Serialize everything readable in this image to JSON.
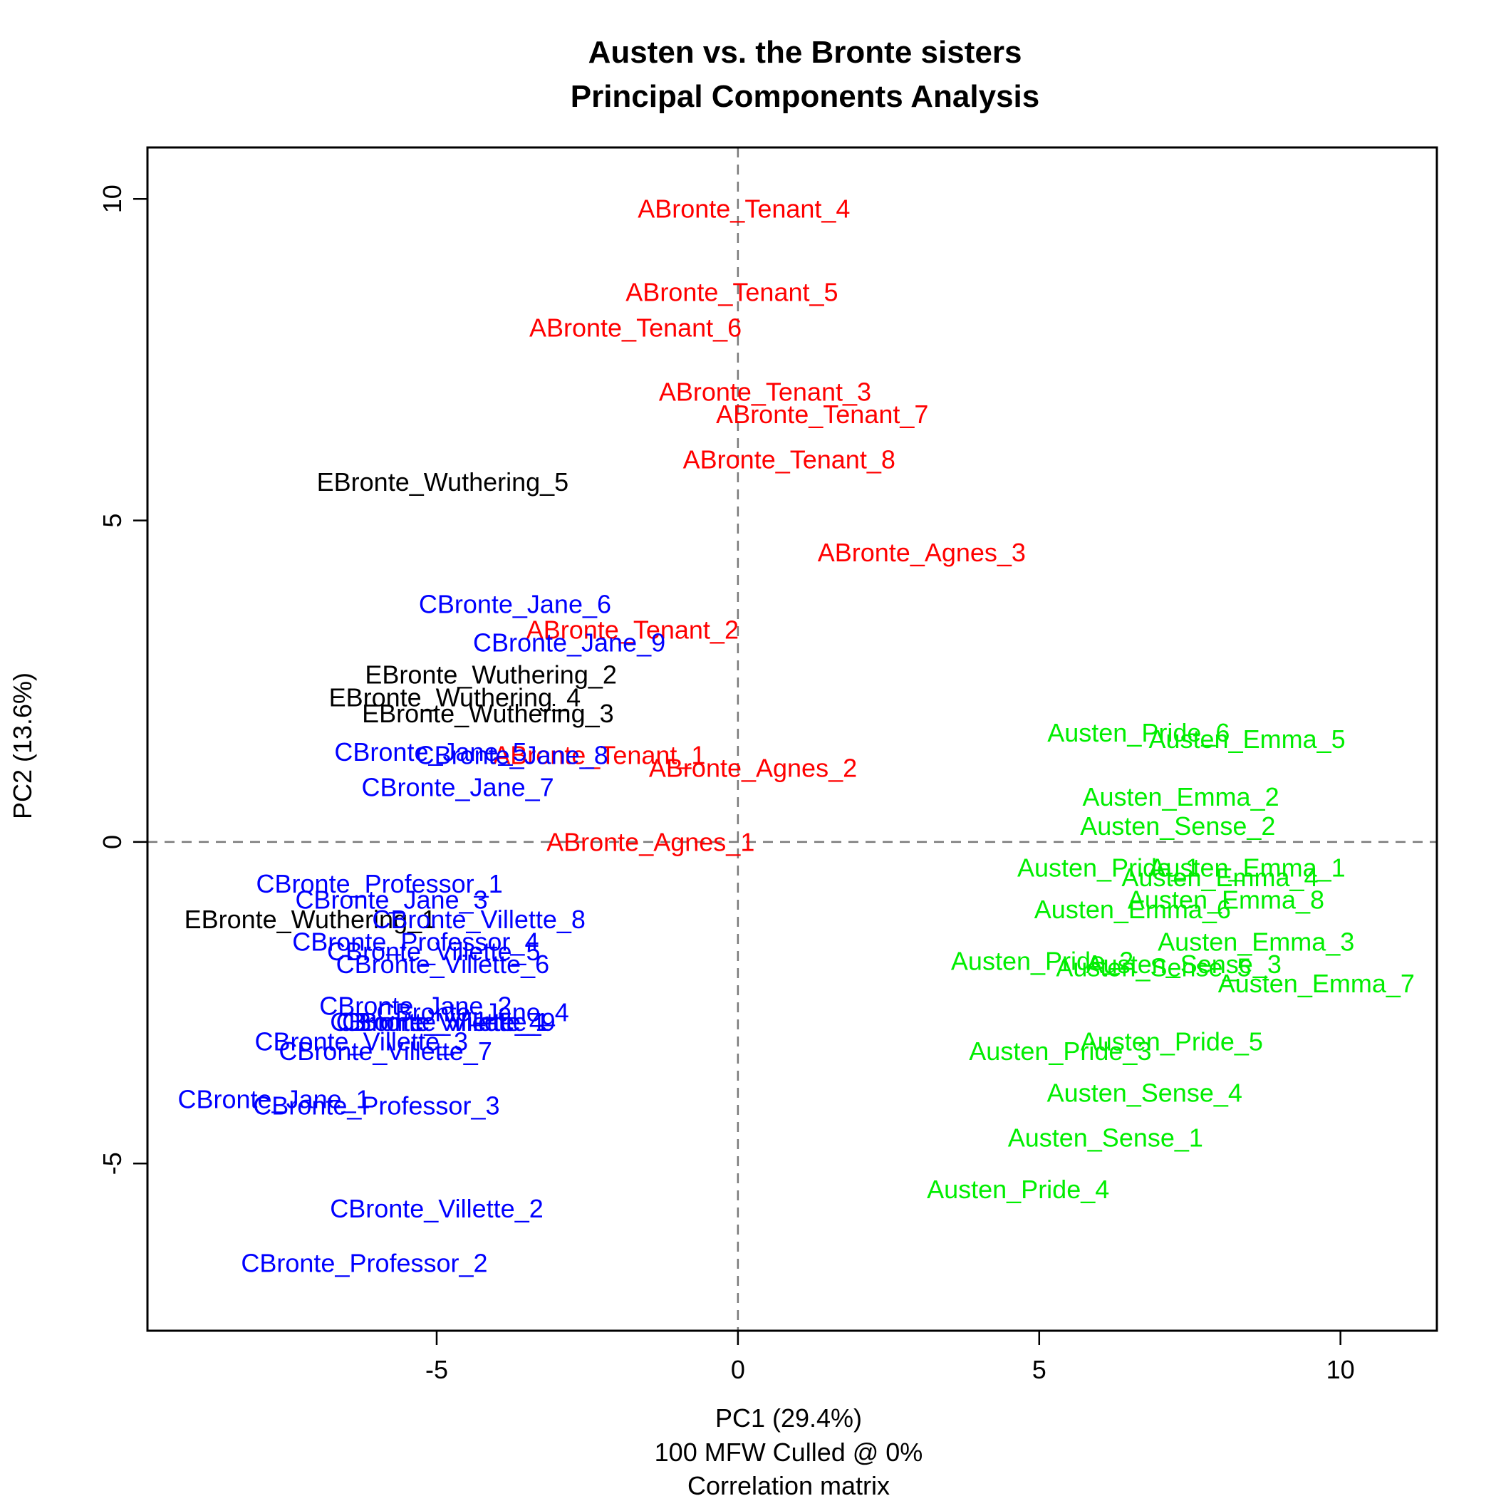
{
  "chart_data": {
    "type": "scatter",
    "title": [
      "Austen vs. the Bronte sisters",
      "Principal Components Analysis"
    ],
    "xlabel": [
      "PC1 (29.4%)",
      "100 MFW  Culled @ 0%",
      "Correlation matrix"
    ],
    "ylabel": "PC2 (13.6%)",
    "xlim": [
      -9.8,
      11.6
    ],
    "ylim": [
      -7.6,
      10.8
    ],
    "xticks": [
      -5,
      0,
      5,
      10
    ],
    "yticks": [
      -5,
      0,
      5,
      10
    ],
    "reference_lines": {
      "x": 0,
      "y": 0,
      "style": "dashed"
    },
    "grid": false,
    "marker": "text-label",
    "colors": {
      "ABronte": "#ff0000",
      "Austen": "#00ee00",
      "CBronte": "#0000ff",
      "EBronte": "#000000"
    },
    "points": [
      {
        "label": "ABronte_Tenant_4",
        "group": "ABronte",
        "x": 0.1,
        "y": 9.85
      },
      {
        "label": "ABronte_Tenant_5",
        "group": "ABronte",
        "x": -0.1,
        "y": 8.55
      },
      {
        "label": "ABronte_Tenant_6",
        "group": "ABronte",
        "x": -1.7,
        "y": 8.0
      },
      {
        "label": "ABronte_Tenant_3",
        "group": "ABronte",
        "x": 0.45,
        "y": 7.0
      },
      {
        "label": "ABronte_Tenant_7",
        "group": "ABronte",
        "x": 1.4,
        "y": 6.65
      },
      {
        "label": "ABronte_Tenant_8",
        "group": "ABronte",
        "x": 0.85,
        "y": 5.95
      },
      {
        "label": "ABronte_Agnes_3",
        "group": "ABronte",
        "x": 3.05,
        "y": 4.5
      },
      {
        "label": "ABronte_Tenant_2",
        "group": "ABronte",
        "x": -1.75,
        "y": 3.3
      },
      {
        "label": "ABronte_Tenant_1",
        "group": "ABronte",
        "x": -2.3,
        "y": 1.35
      },
      {
        "label": "ABronte_Agnes_2",
        "group": "ABronte",
        "x": 0.25,
        "y": 1.15
      },
      {
        "label": "ABronte_Agnes_1",
        "group": "ABronte",
        "x": -1.45,
        "y": 0.0
      },
      {
        "label": "EBronte_Wuthering_5",
        "group": "EBronte",
        "x": -4.9,
        "y": 5.6
      },
      {
        "label": "EBronte_Wuthering_2",
        "group": "EBronte",
        "x": -4.1,
        "y": 2.6
      },
      {
        "label": "EBronte_Wuthering_4",
        "group": "EBronte",
        "x": -4.7,
        "y": 2.25
      },
      {
        "label": "EBronte_Wuthering_3",
        "group": "EBronte",
        "x": -4.15,
        "y": 2.0
      },
      {
        "label": "EBronte_Wuthering_1",
        "group": "EBronte",
        "x": -7.1,
        "y": -1.2
      },
      {
        "label": "CBronte_Jane_6",
        "group": "CBronte",
        "x": -3.7,
        "y": 3.7
      },
      {
        "label": "CBronte_Jane_9",
        "group": "CBronte",
        "x": -2.8,
        "y": 3.1
      },
      {
        "label": "CBronte_Jane_5",
        "group": "CBronte",
        "x": -5.1,
        "y": 1.4
      },
      {
        "label": "CBronte_Jane_8",
        "group": "CBronte",
        "x": -3.75,
        "y": 1.35
      },
      {
        "label": "CBronte_Jane_7",
        "group": "CBronte",
        "x": -4.65,
        "y": 0.85
      },
      {
        "label": "CBronte_Professor_1",
        "group": "CBronte",
        "x": -5.95,
        "y": -0.65
      },
      {
        "label": "CBronte_Jane_3",
        "group": "CBronte",
        "x": -5.75,
        "y": -0.9
      },
      {
        "label": "CBronte_Villette_8",
        "group": "CBronte",
        "x": -4.3,
        "y": -1.2
      },
      {
        "label": "CBronte_Professor_4",
        "group": "CBronte",
        "x": -5.35,
        "y": -1.55
      },
      {
        "label": "CBronte_Villette_5",
        "group": "CBronte",
        "x": -5.05,
        "y": -1.7
      },
      {
        "label": "CBronte_Villette_6",
        "group": "CBronte",
        "x": -4.9,
        "y": -1.9
      },
      {
        "label": "CBronte_Jane_2",
        "group": "CBronte",
        "x": -5.35,
        "y": -2.55
      },
      {
        "label": "CBronte_Jane_4",
        "group": "CBronte",
        "x": -4.4,
        "y": -2.65
      },
      {
        "label": "CBronte_Villette_9",
        "group": "CBronte",
        "x": -4.8,
        "y": -2.8
      },
      {
        "label": "CBronte_Villette_1",
        "group": "CBronte",
        "x": -4.9,
        "y": -2.8
      },
      {
        "label": "CBronte_Villette_4",
        "group": "CBronte",
        "x": -5.0,
        "y": -2.8
      },
      {
        "label": "CBronte_Villette_3",
        "group": "CBronte",
        "x": -6.25,
        "y": -3.1
      },
      {
        "label": "CBronte_Villette_7",
        "group": "CBronte",
        "x": -5.85,
        "y": -3.25
      },
      {
        "label": "CBronte_Jane_1",
        "group": "CBronte",
        "x": -7.7,
        "y": -4.0
      },
      {
        "label": "CBronte_Professor_3",
        "group": "CBronte",
        "x": -6.0,
        "y": -4.1
      },
      {
        "label": "CBronte_Villette_2",
        "group": "CBronte",
        "x": -5.0,
        "y": -5.7
      },
      {
        "label": "CBronte_Professor_2",
        "group": "CBronte",
        "x": -6.2,
        "y": -6.55
      },
      {
        "label": "Austen_Pride_6",
        "group": "Austen",
        "x": 6.65,
        "y": 1.7
      },
      {
        "label": "Austen_Emma_5",
        "group": "Austen",
        "x": 8.45,
        "y": 1.6
      },
      {
        "label": "Austen_Emma_2",
        "group": "Austen",
        "x": 7.35,
        "y": 0.7
      },
      {
        "label": "Austen_Sense_2",
        "group": "Austen",
        "x": 7.3,
        "y": 0.25
      },
      {
        "label": "Austen_Pride_1",
        "group": "Austen",
        "x": 6.15,
        "y": -0.4
      },
      {
        "label": "Austen_Emma_1",
        "group": "Austen",
        "x": 8.45,
        "y": -0.4
      },
      {
        "label": "Austen_Emma_4",
        "group": "Austen",
        "x": 8.0,
        "y": -0.55
      },
      {
        "label": "Austen_Emma_8",
        "group": "Austen",
        "x": 8.1,
        "y": -0.9
      },
      {
        "label": "Austen_Emma_6",
        "group": "Austen",
        "x": 6.55,
        "y": -1.05
      },
      {
        "label": "Austen_Emma_3",
        "group": "Austen",
        "x": 8.6,
        "y": -1.55
      },
      {
        "label": "Austen_Pride_2",
        "group": "Austen",
        "x": 5.05,
        "y": -1.85
      },
      {
        "label": "Austen_Sense_3",
        "group": "Austen",
        "x": 7.4,
        "y": -1.9
      },
      {
        "label": "Austen_Sense_5",
        "group": "Austen",
        "x": 6.9,
        "y": -1.95
      },
      {
        "label": "Austen_Emma_7",
        "group": "Austen",
        "x": 9.6,
        "y": -2.2
      },
      {
        "label": "Austen_Pride_5",
        "group": "Austen",
        "x": 7.2,
        "y": -3.1
      },
      {
        "label": "Austen_Pride_3",
        "group": "Austen",
        "x": 5.35,
        "y": -3.25
      },
      {
        "label": "Austen_Sense_4",
        "group": "Austen",
        "x": 6.75,
        "y": -3.9
      },
      {
        "label": "Austen_Sense_1",
        "group": "Austen",
        "x": 6.1,
        "y": -4.6
      },
      {
        "label": "Austen_Pride_4",
        "group": "Austen",
        "x": 4.65,
        "y": -5.4
      }
    ]
  }
}
